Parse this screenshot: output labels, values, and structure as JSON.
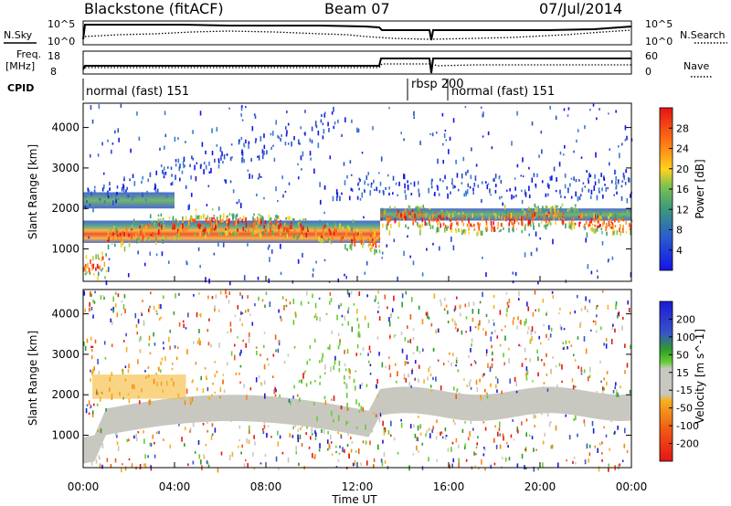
{
  "header": {
    "station": "Blackstone (fitACF)",
    "beam": "Beam 07",
    "date": "07/Jul/2014"
  },
  "status": {
    "nsky_label": "N.Sky",
    "nsearch_label": "N.Search",
    "freq_label_1": "Freq.",
    "freq_label_2": "[MHz]",
    "nave_label": "Nave",
    "cpid_label": "CPID",
    "nsky_ticks": [
      "10^5",
      "10^0"
    ],
    "nsearch_ticks": [
      "10^5",
      "10^0"
    ],
    "freq_ticks": [
      "18",
      "8"
    ],
    "nave_ticks": [
      "60",
      "0"
    ],
    "cpid_segments": [
      {
        "label": "normal (fast) 151",
        "start_hour": 0
      },
      {
        "label": "rbsp 200",
        "start_hour": 14.5
      },
      {
        "label": "normal (fast) 151",
        "start_hour": 16
      }
    ]
  },
  "chart_data": [
    {
      "type": "heatmap",
      "name": "power",
      "xlabel": "",
      "ylabel": "Slant Range [km]",
      "ylim": [
        200,
        4600
      ],
      "yticks": [
        1000,
        2000,
        3000,
        4000
      ],
      "colorbar": {
        "label": "Power [dB]",
        "ticks": [
          "4",
          "8",
          "12",
          "16",
          "20",
          "24",
          "28"
        ],
        "colors": [
          "#1414e6",
          "#2a4fc9",
          "#3c7bd2",
          "#3b9a7a",
          "#5aaa4e",
          "#7fc24e",
          "#b9d14a",
          "#ffd21e",
          "#ffa51e",
          "#ff7a14",
          "#ff4a0f",
          "#e61414"
        ]
      },
      "bands": [
        {
          "desc": "main echo band",
          "range_start_km": 1150,
          "range_end_km": 1700,
          "start_hour": 0,
          "end_hour": 13,
          "peak_db": 28
        },
        {
          "desc": "upper echo band",
          "range_start_km": 2000,
          "range_end_km": 2400,
          "start_hour": 0,
          "end_hour": 4,
          "peak_db": 16
        },
        {
          "desc": "late band",
          "range_start_km": 1700,
          "range_end_km": 2000,
          "start_hour": 13,
          "end_hour": 24,
          "peak_db": 20
        }
      ]
    },
    {
      "type": "heatmap",
      "name": "velocity",
      "xlabel": "Time UT",
      "ylabel": "Slant Range [km]",
      "ylim": [
        200,
        4600
      ],
      "yticks": [
        1000,
        2000,
        3000,
        4000
      ],
      "xticks": [
        "00:00",
        "04:00",
        "08:00",
        "12:00",
        "16:00",
        "20:00",
        "00:00"
      ],
      "colorbar": {
        "label": "Velocity [m s^-1]",
        "ticks": [
          "200",
          "100",
          "50",
          "15",
          "-15",
          "-50",
          "-100",
          "-200"
        ],
        "colors": [
          "#1a1ad6",
          "#3a55c8",
          "#2e9a2e",
          "#66cc33",
          "#c8c8c0",
          "#c8c8c0",
          "#f5b020",
          "#f58a14",
          "#f05a14",
          "#e61414"
        ]
      }
    }
  ]
}
